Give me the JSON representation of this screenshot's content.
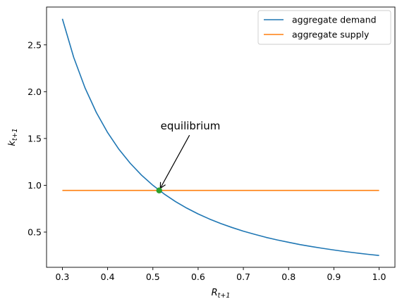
{
  "chart_data": {
    "type": "line",
    "title": "",
    "xlabel": "R",
    "xlabel_sub": "t+1",
    "ylabel": "k",
    "ylabel_sub": "t+1",
    "xlim": [
      0.265,
      1.035
    ],
    "ylim": [
      0.124,
      2.904
    ],
    "xticks": [
      0.3,
      0.4,
      0.5,
      0.6,
      0.7,
      0.8,
      0.9,
      1.0
    ],
    "xtick_labels": [
      "0.3",
      "0.4",
      "0.5",
      "0.6",
      "0.7",
      "0.8",
      "0.9",
      "1.0"
    ],
    "yticks": [
      0.5,
      1.0,
      1.5,
      2.0,
      2.5
    ],
    "ytick_labels": [
      "0.5",
      "1.0",
      "1.5",
      "2.0",
      "2.5"
    ],
    "grid": false,
    "legend": "top-right",
    "series": [
      {
        "name": "aggregate demand",
        "color": "#1f77b4",
        "x": [
          0.3,
          0.325,
          0.35,
          0.375,
          0.4,
          0.425,
          0.45,
          0.475,
          0.5,
          0.525,
          0.55,
          0.575,
          0.6,
          0.625,
          0.65,
          0.675,
          0.7,
          0.725,
          0.75,
          0.775,
          0.8,
          0.825,
          0.85,
          0.875,
          0.9,
          0.925,
          0.95,
          0.975,
          1.0
        ],
        "y": [
          2.778,
          2.367,
          2.041,
          1.778,
          1.563,
          1.384,
          1.235,
          1.108,
          1.0,
          0.907,
          0.826,
          0.756,
          0.694,
          0.64,
          0.592,
          0.549,
          0.51,
          0.476,
          0.444,
          0.416,
          0.391,
          0.367,
          0.346,
          0.327,
          0.309,
          0.292,
          0.277,
          0.263,
          0.25
        ]
      },
      {
        "name": "aggregate supply",
        "color": "#ff7f0e",
        "x": [
          0.3,
          1.0
        ],
        "y": [
          0.945,
          0.945
        ]
      }
    ],
    "equilibrium": {
      "x": 0.514,
      "y": 0.945,
      "color": "#2ca02c"
    },
    "annotation": {
      "text": "equilibrium",
      "text_x": 0.517,
      "text_y": 1.535,
      "arrow_to_x": 0.514,
      "arrow_to_y": 0.945
    }
  }
}
